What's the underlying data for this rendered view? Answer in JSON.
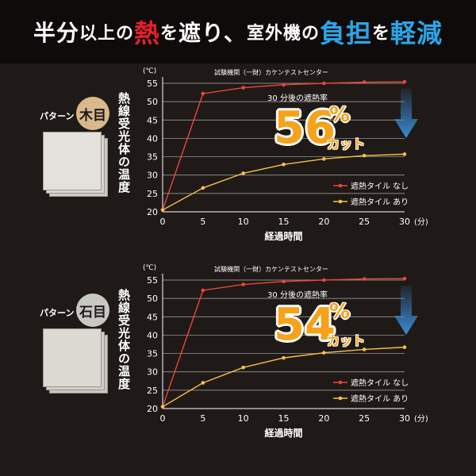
{
  "headline": {
    "part1": "半分",
    "part2": "以上の",
    "part3": "熱",
    "part4": "を",
    "part5": "遮り、",
    "part6": "室外機の",
    "part7": "負担",
    "part8": "を",
    "part9": "軽減"
  },
  "colors": {
    "no_tile": "#e8473b",
    "with_tile": "#f5c04a",
    "accent_orange": "#f6a21a",
    "arrow_blue": "#3a8bd6"
  },
  "panels": [
    {
      "pattern_label": "パターン",
      "pattern_name": "木目",
      "badge_color": "#d9b98a",
      "tile_color": "#e4e1dc",
      "vertical_label": "熱線受光体の温度",
      "result_label": "30 分後の遮熱率",
      "percent_number": "56",
      "percent_sign": "%",
      "cut_text": "カット",
      "chart_data": {
        "type": "line",
        "title": "試験機関（一財）カケンテストセンター",
        "xlabel": "経過時間",
        "ylabel": "(℃)",
        "x_unit": "(分)",
        "x": [
          0,
          5,
          10,
          15,
          20,
          25,
          30
        ],
        "ylim": [
          20,
          55
        ],
        "yticks": [
          20,
          25,
          30,
          35,
          40,
          45,
          50,
          55
        ],
        "xticks": [
          0,
          5,
          10,
          15,
          20,
          25,
          30
        ],
        "grid": true,
        "legend_position": "bottom-right",
        "series": [
          {
            "name": "遮熱タイル なし",
            "values": [
              20.5,
              52.2,
              53.8,
              54.6,
              55.0,
              55.3,
              55.4
            ]
          },
          {
            "name": "遮熱タイル あり",
            "values": [
              20.5,
              26.5,
              30.5,
              32.9,
              34.4,
              35.3,
              35.7
            ]
          }
        ]
      }
    },
    {
      "pattern_label": "パターン",
      "pattern_name": "石目",
      "badge_color": "#c9c7c2",
      "tile_color": "#dcd9d3",
      "vertical_label": "熱線受光体の温度",
      "result_label": "30 分後の遮熱率",
      "percent_number": "54",
      "percent_sign": "%",
      "cut_text": "カット",
      "chart_data": {
        "type": "line",
        "title": "試験機関（一財）カケンテストセンター",
        "xlabel": "経過時間",
        "ylabel": "(℃)",
        "x_unit": "(分)",
        "x": [
          0,
          5,
          10,
          15,
          20,
          25,
          30
        ],
        "ylim": [
          20,
          55
        ],
        "yticks": [
          20,
          25,
          30,
          35,
          40,
          45,
          50,
          55
        ],
        "xticks": [
          0,
          5,
          10,
          15,
          20,
          25,
          30
        ],
        "grid": true,
        "legend_position": "bottom-right",
        "series": [
          {
            "name": "遮熱タイル なし",
            "values": [
              20.5,
              52.2,
              53.8,
              54.6,
              55.0,
              55.3,
              55.4
            ]
          },
          {
            "name": "遮熱タイル あり",
            "values": [
              20.5,
              27.0,
              31.2,
              33.8,
              35.2,
              36.1,
              36.7
            ]
          }
        ]
      }
    }
  ]
}
